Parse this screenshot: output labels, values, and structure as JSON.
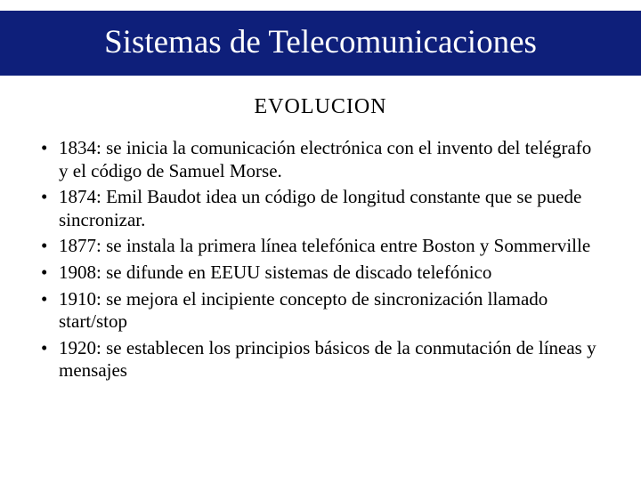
{
  "title": "Sistemas de Telecomunicaciones",
  "subtitle": "EVOLUCION",
  "bullets": [
    {
      "text": "1834: se inicia la comunicación electrónica con el invento del telégrafo y el código de Samuel Morse.",
      "justify": false
    },
    {
      "text": "1874: Emil Baudot idea un código de longitud constante que se puede sincronizar.",
      "justify": false
    },
    {
      "text": "1877: se instala la primera línea telefónica entre Boston y Sommerville",
      "justify": true
    },
    {
      "text": "1908: se difunde en EEUU sistemas de discado telefónico",
      "justify": false
    },
    {
      "text": "1910: se mejora el incipiente concepto de sincronización llamado start/stop",
      "justify": false
    },
    {
      "text": "1920: se establecen los principios básicos de la conmutación de líneas y mensajes",
      "justify": false
    }
  ],
  "colors": {
    "banner_bg": "#0e1f7a",
    "banner_text": "#ffffff",
    "page_bg": "#ffffff",
    "body_text": "#000000"
  },
  "typography": {
    "title_fontsize": 37,
    "subtitle_fontsize": 24,
    "body_fontsize": 21,
    "font_family": "Times New Roman"
  }
}
